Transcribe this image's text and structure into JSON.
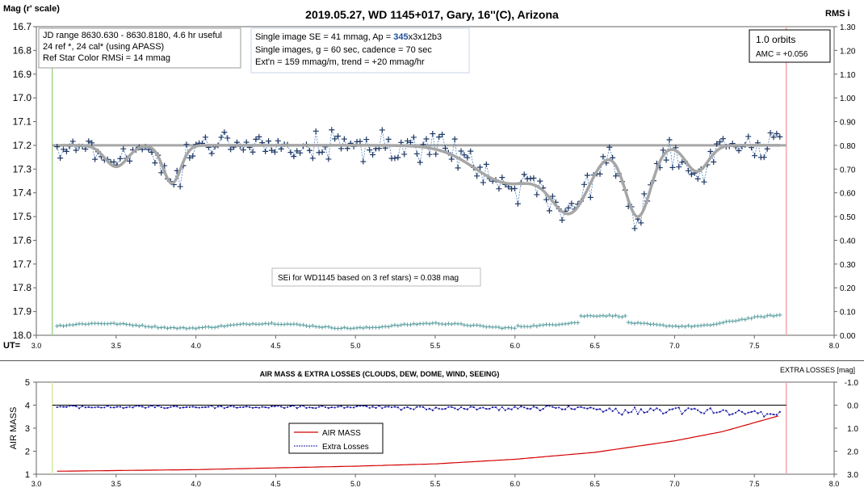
{
  "chart_data": [
    {
      "type": "scatter",
      "title": "2019.05.27, WD 1145+017, Gary, 16''(C), Arizona",
      "ylabel": "Mag (r' scale)",
      "y2label": "RMS i",
      "xlabel": "UT=",
      "xlim": [
        3.0,
        8.0
      ],
      "ylim": [
        16.7,
        18.0
      ],
      "y2lim": [
        0.0,
        1.3
      ],
      "x_ticks": [
        "3.0",
        "3.5",
        "4.0",
        "4.5",
        "5.0",
        "5.5",
        "6.0",
        "6.5",
        "7.0",
        "7.5",
        "8.0"
      ],
      "y_ticks": [
        "16.7",
        "16.8",
        "16.9",
        "17.0",
        "17.1",
        "17.2",
        "17.3",
        "17.4",
        "17.5",
        "17.6",
        "17.7",
        "17.8",
        "17.9",
        "18.0"
      ],
      "y2_ticks": [
        "1.30",
        "1.20",
        "1.10",
        "1.00",
        "0.90",
        "0.80",
        "0.70",
        "0.60",
        "0.50",
        "0.40",
        "0.30",
        "0.20",
        "0.10",
        "0.00"
      ],
      "reference_level": 17.2,
      "start_marker_x": 3.1,
      "end_marker_x": 7.7,
      "annotations": {
        "box1": [
          "JD range 8630.630 - 8630.8180, 4.6 hr useful",
          " 24 ref *, 24 cal* (using APASS)",
          "Ref Star Color RMSi = 14 mmag"
        ],
        "box2_line1_pre": "Single image SE = 41 mmag, Ap = ",
        "box2_line1_em": "345",
        "box2_line1_post": "x3x12b3",
        "box2_lines": [
          "Single images, g = 60 sec, cadence = 70 sec",
          "Ext'n = 159 mmag/m, trend = +20 mmag/hr"
        ],
        "orbits": "1.0 orbits",
        "amc": "AMC = +0.056",
        "sei": "SEi for WD1145 based on 3 ref stars) = 0.038 mag"
      },
      "model_dips": [
        {
          "center": 3.5,
          "depth": 0.09,
          "width": 0.07
        },
        {
          "center": 3.85,
          "depth": 0.16,
          "width": 0.055
        },
        {
          "center": 5.97,
          "depth": 0.16,
          "width": 0.22
        },
        {
          "center": 6.35,
          "depth": 0.25,
          "width": 0.12
        },
        {
          "center": 6.77,
          "depth": 0.3,
          "width": 0.08
        },
        {
          "center": 7.14,
          "depth": 0.11,
          "width": 0.07
        }
      ],
      "series": [
        {
          "label": "mag",
          "color": "#1f3864",
          "x_start": 3.13,
          "x_end": 7.66,
          "n": 230,
          "noise": 0.045
        },
        {
          "label": "rms",
          "color": "#5b9ea0",
          "x_start": 3.13,
          "x_end": 7.66,
          "n": 230,
          "level": 0.04
        }
      ]
    },
    {
      "type": "line",
      "title": "AIR MASS & EXTRA LOSSES (CLOUDS, DEW, DOME, WIND, SEEING)",
      "ylabel": "AIR MASS",
      "y2label": "EXTRA LOSSES [mag]",
      "xlim": [
        3.0,
        8.0
      ],
      "ylim": [
        1,
        5
      ],
      "y2lim": [
        -1.0,
        3.0
      ],
      "x_ticks": [
        "3.0",
        "3.5",
        "4.0",
        "4.5",
        "5.0",
        "5.5",
        "6.0",
        "6.5",
        "7.0",
        "7.5",
        "8.0"
      ],
      "y_ticks": [
        "5",
        "4",
        "3",
        "2",
        "1"
      ],
      "y2_ticks": [
        "-1.0",
        "0.0",
        "1.0",
        "2.0",
        "3.0"
      ],
      "legend": [
        "AIR MASS",
        "Extra Losses"
      ],
      "start_marker_x": 3.1,
      "end_marker_x": 7.7,
      "air_mass": {
        "x": [
          3.13,
          4.0,
          5.0,
          5.5,
          6.0,
          6.5,
          7.0,
          7.3,
          7.66
        ],
        "y": [
          1.13,
          1.2,
          1.35,
          1.45,
          1.65,
          1.95,
          2.45,
          2.85,
          3.55
        ]
      },
      "extra_losses": {
        "x_start": 3.13,
        "x_end": 7.66,
        "n": 230
      },
      "colors": {
        "air_mass": "#d40000",
        "extra_losses": "#1a1aa8"
      }
    }
  ]
}
